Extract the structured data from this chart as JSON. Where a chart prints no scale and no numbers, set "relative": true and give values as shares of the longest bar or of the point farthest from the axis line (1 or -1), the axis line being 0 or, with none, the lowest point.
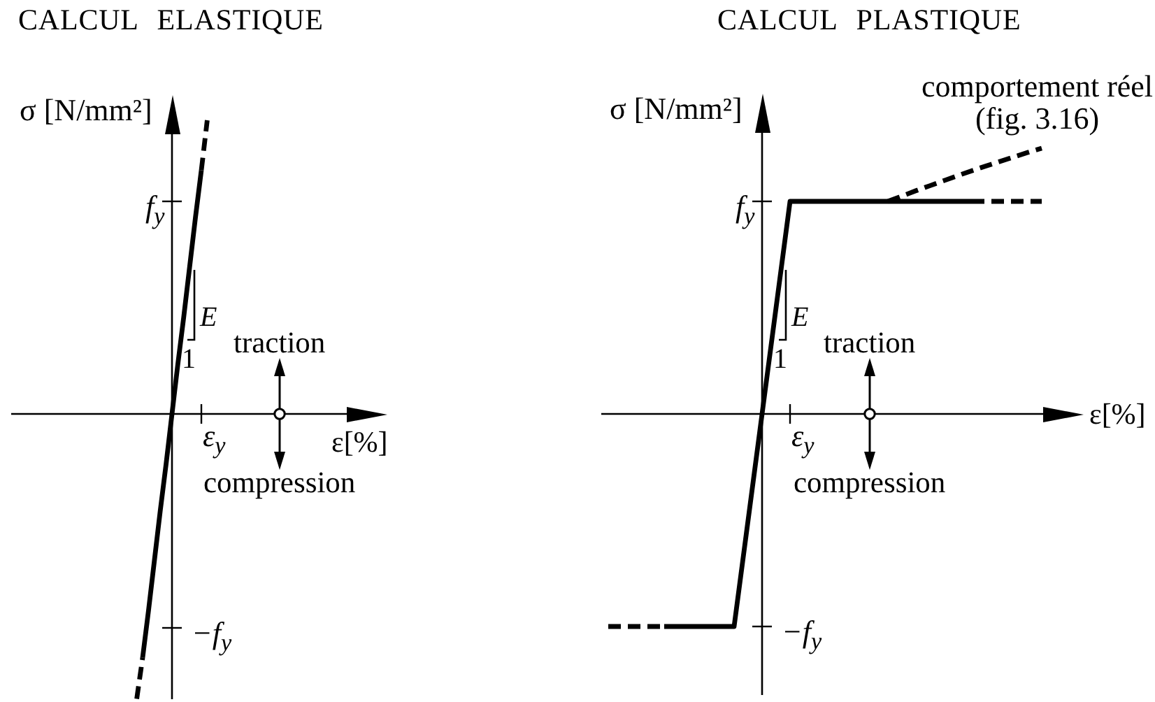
{
  "chart_data": [
    {
      "type": "line",
      "relative": true,
      "title": "CALCUL ELASTIQUE",
      "xlabel": "ε[%]",
      "ylabel": "σ [N/mm²]",
      "marker": "none",
      "categories": [
        null,
        null,
        null,
        null,
        null,
        null,
        null,
        null,
        null,
        null,
        null,
        null,
        null
      ],
      "series": [
        {
          "color": "#000000",
          "line_style": "solid",
          "values": [
            null,
            -0.83,
            -0.67,
            -0.5,
            -0.33,
            -0.17,
            0,
            0.17,
            0.33,
            0.5,
            0.67,
            0.83,
            null
          ]
        },
        {
          "color": "#000000",
          "line_style": "dashed",
          "values": [
            -0.97,
            -0.83,
            null,
            null,
            null,
            null,
            null,
            null,
            null,
            null,
            null,
            0.83,
            1
          ]
        }
      ],
      "annotations": [
        "E",
        "1",
        "traction",
        "compression",
        "ε$_{y}$",
        "f$_{y}$",
        "−f$_{y}$"
      ]
    },
    {
      "type": "line",
      "relative": true,
      "title": "CALCUL PLASTIQUE",
      "xlabel": "ε[%]",
      "ylabel": "σ [N/mm²]",
      "marker": "none",
      "categories": [
        null,
        null,
        null,
        null,
        null,
        null,
        null,
        null,
        null,
        null,
        null,
        null,
        null,
        null,
        null,
        null,
        null,
        null,
        null,
        null,
        null,
        null,
        null,
        null,
        null,
        null,
        null,
        null,
        null,
        null,
        null,
        null
      ],
      "series": [
        {
          "color": "#000000",
          "line_style": "solid",
          "values": [
            null,
            null,
            null,
            null,
            -0.8,
            -0.8,
            -0.8,
            -0.8,
            -0.8,
            -0.8,
            -0.4,
            0,
            0.4,
            0.8,
            0.8,
            0.8,
            0.8,
            0.8,
            0.8,
            0.8,
            0.8,
            0.8,
            0.8,
            0.8,
            0.8,
            0.8,
            0.8,
            null,
            null,
            null,
            null,
            null
          ]
        },
        {
          "color": "#000000",
          "line_style": "dashed",
          "values": [
            -0.8,
            -0.8,
            -0.8,
            -0.8,
            -0.8,
            null,
            null,
            null,
            null,
            null,
            null,
            null,
            null,
            null,
            null,
            null,
            null,
            null,
            null,
            null,
            null,
            null,
            null,
            null,
            null,
            null,
            0.8,
            0.8,
            0.8,
            0.8,
            0.8,
            0.8
          ]
        },
        {
          "color": "#000000",
          "line_style": "dashed",
          "values": [
            null,
            null,
            null,
            null,
            null,
            null,
            null,
            null,
            null,
            null,
            null,
            null,
            null,
            null,
            null,
            null,
            null,
            null,
            null,
            null,
            0.8,
            0.82,
            0.84,
            0.859,
            0.878,
            0.897,
            0.915,
            0.933,
            0.95,
            0.967,
            0.984,
            1
          ]
        }
      ],
      "annotations": [
        "E",
        "1",
        "traction",
        "compression",
        "ε$_{y}$",
        "f$_{y}$",
        "−f$_{y}$",
        "comportement réel\n(fig. 3.16)"
      ]
    }
  ]
}
